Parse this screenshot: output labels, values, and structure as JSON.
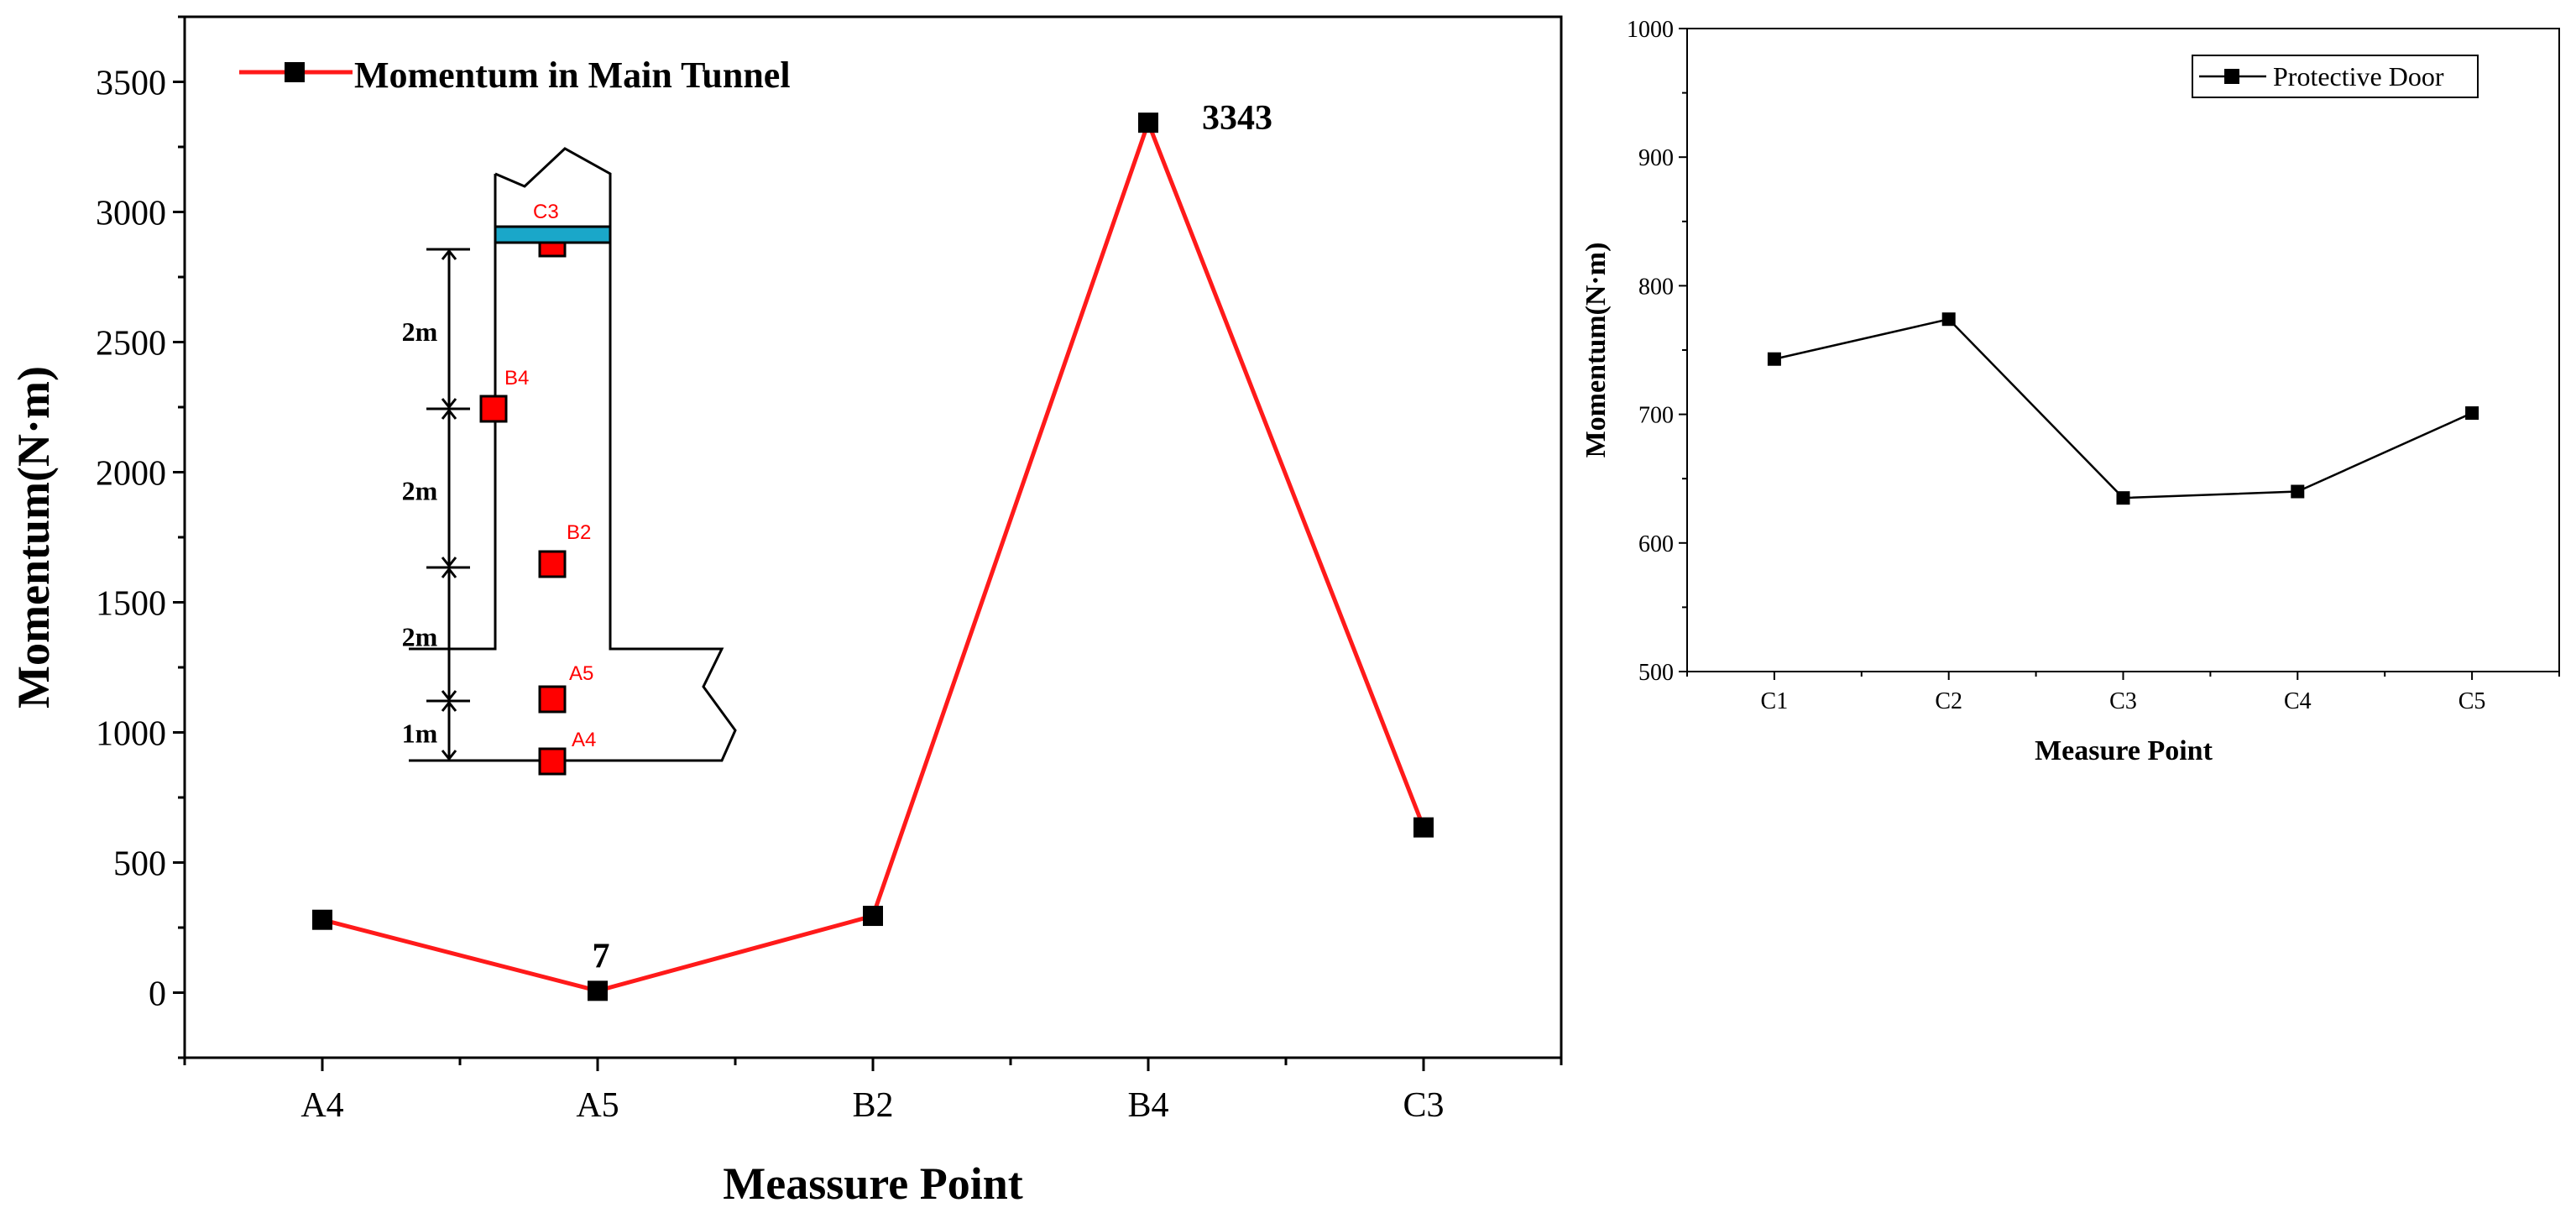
{
  "colors": {
    "main_line": "#ff1a1a",
    "door_line": "#000000",
    "marker": "#000000",
    "inset_marker": "#ff0000",
    "inset_label": "#ff0000",
    "door_band": "#1aa7c9"
  },
  "chart_data": [
    {
      "type": "line",
      "xlabel": "Meassure Point",
      "ylabel": "Momentum(N·m)",
      "categories": [
        "A4",
        "A5",
        "B2",
        "B4",
        "C3"
      ],
      "series": [
        {
          "name": "Momentum in Main Tunnel",
          "values": [
            280,
            7,
            295,
            3343,
            635
          ]
        }
      ],
      "ylim": [
        -250,
        3750
      ],
      "yticks": [
        0,
        500,
        1000,
        1500,
        2000,
        2500,
        3000,
        3500
      ],
      "annotations": [
        {
          "category": "A5",
          "text": "7"
        },
        {
          "category": "B4",
          "text": "3343"
        }
      ],
      "legend": "top-left",
      "grid": false,
      "inset_diagram": {
        "points": [
          "C3",
          "B4",
          "B2",
          "A5",
          "A4"
        ],
        "spacings": [
          "2m",
          "2m",
          "2m",
          "1m"
        ]
      }
    },
    {
      "type": "line",
      "xlabel": "Measure Point",
      "ylabel": "Momentum(N·m)",
      "categories": [
        "C1",
        "C2",
        "C3",
        "C4",
        "C5"
      ],
      "series": [
        {
          "name": "Protective Door",
          "values": [
            743,
            774,
            635,
            640,
            701
          ]
        }
      ],
      "ylim": [
        500,
        1000
      ],
      "yticks": [
        500,
        600,
        700,
        800,
        900,
        1000
      ],
      "legend": "top-right",
      "grid": false
    }
  ]
}
